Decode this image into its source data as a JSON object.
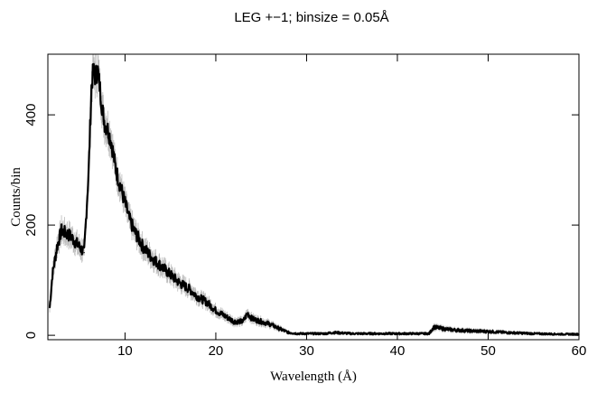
{
  "chart_data": {
    "type": "line",
    "title": "LEG +−1; binsize = 0.05Å",
    "xlabel": "Wavelength (Å)",
    "ylabel": "Counts/bin",
    "xlim": [
      1.5,
      60
    ],
    "ylim": [
      -8,
      510
    ],
    "xticks": [
      10,
      20,
      30,
      40,
      50,
      60
    ],
    "yticks": [
      0,
      200,
      400
    ],
    "grid": false,
    "legend": "none",
    "colors": {
      "line": "#000000",
      "error_bars": "#bbbbbb"
    },
    "series": [
      {
        "x": [
          1.7,
          2.0,
          2.5,
          3.0,
          3.5,
          4.0,
          4.5,
          5.0,
          5.5,
          5.8,
          6.0,
          6.3,
          6.5,
          6.7,
          7.0,
          7.3,
          7.5,
          7.8,
          8.0,
          8.5,
          9.0,
          9.5,
          10.0,
          10.5,
          11.0,
          11.5,
          12.0,
          12.5,
          13.0,
          14.0,
          15.0,
          16.0,
          17.0,
          18.0,
          19.0,
          20.0,
          21.0,
          22.0,
          23.0,
          23.5,
          24.0,
          25.0,
          26.0,
          27.0,
          28.0,
          29.0,
          30.0,
          31.0,
          32.0,
          33.0,
          35.0,
          40.0,
          43.5,
          44.0,
          45.0,
          46.0,
          48.0,
          50.0,
          52.0,
          55.0,
          58.0,
          60.0
        ],
        "y": [
          50,
          110,
          160,
          190,
          185,
          180,
          170,
          160,
          150,
          240,
          300,
          450,
          480,
          470,
          480,
          440,
          410,
          380,
          380,
          350,
          300,
          270,
          240,
          210,
          190,
          175,
          160,
          150,
          140,
          125,
          110,
          95,
          85,
          70,
          60,
          45,
          35,
          25,
          25,
          40,
          30,
          25,
          20,
          12,
          5,
          3,
          3,
          3,
          3,
          5,
          3,
          3,
          3,
          15,
          12,
          10,
          8,
          7,
          5,
          3,
          2,
          2
        ]
      }
    ]
  }
}
